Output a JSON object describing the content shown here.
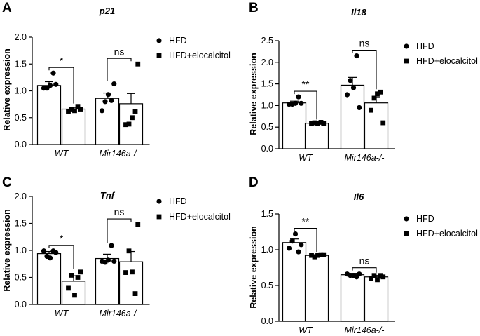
{
  "chart_data": [
    {
      "panel": "A",
      "type": "bar",
      "title": "p21",
      "ylabel": "Relative expression",
      "ylim": [
        0,
        2.0
      ],
      "yticks": [
        0.0,
        0.5,
        1.0,
        1.5,
        2.0
      ],
      "ytick_labels": [
        "0.0",
        "0.5",
        "1.0",
        "1.5",
        "2.0"
      ],
      "categories": [
        "WT",
        "Mir146a-/-"
      ],
      "legend": [
        "HFD",
        "HFD+elocalcitol"
      ],
      "series": [
        {
          "name": "HFD",
          "marker": "circle",
          "values": [
            1.1,
            0.86
          ],
          "errors": [
            0.07,
            0.1
          ],
          "points": [
            [
              1.05,
              1.05,
              1.1,
              1.33,
              1.12
            ],
            [
              0.63,
              0.8,
              0.93,
              0.82,
              1.13
            ]
          ]
        },
        {
          "name": "HFD+elocalcitol",
          "marker": "square",
          "values": [
            0.66,
            0.76
          ],
          "errors": [
            0.03,
            0.19
          ],
          "points": [
            [
              0.62,
              0.66,
              0.63,
              0.71,
              0.66
            ],
            [
              0.37,
              0.38,
              0.5,
              0.62,
              1.5
            ]
          ]
        }
      ],
      "significance": [
        "*",
        "ns"
      ]
    },
    {
      "panel": "B",
      "type": "bar",
      "title": "Il18",
      "ylabel": "Relative expression",
      "ylim": [
        0,
        2.5
      ],
      "yticks": [
        0.0,
        0.5,
        1.0,
        1.5,
        2.0,
        2.5
      ],
      "ytick_labels": [
        "0.0",
        "0.5",
        "1.0",
        "1.5",
        "2.0",
        "2.5"
      ],
      "categories": [
        "WT",
        "Mir146a-/-"
      ],
      "legend": [
        "HFD",
        "HFD+elocalcitol"
      ],
      "series": [
        {
          "name": "HFD",
          "marker": "circle",
          "values": [
            1.06,
            1.47
          ],
          "errors": [
            0.04,
            0.18
          ],
          "points": [
            [
              1.03,
              1.03,
              1.05,
              1.2,
              1.05
            ],
            [
              1.25,
              1.58,
              1.41,
              2.15,
              0.95
            ]
          ]
        },
        {
          "name": "HFD+elocalcitol",
          "marker": "square",
          "values": [
            0.59,
            1.06
          ],
          "errors": [
            0.01,
            0.14
          ],
          "points": [
            [
              0.58,
              0.6,
              0.58,
              0.61,
              0.58
            ],
            [
              0.89,
              1.17,
              1.27,
              1.31,
              0.6
            ]
          ]
        }
      ],
      "significance": [
        "**",
        "ns"
      ]
    },
    {
      "panel": "C",
      "type": "bar",
      "title": "Tnf",
      "ylabel": "Relative expression",
      "ylim": [
        0,
        2.0
      ],
      "yticks": [
        0.0,
        0.5,
        1.0,
        1.5,
        2.0
      ],
      "ytick_labels": [
        "0.0",
        "0.5",
        "1.0",
        "1.5",
        "2.0"
      ],
      "categories": [
        "WT",
        "Mir146a-/-"
      ],
      "legend": [
        "HFD",
        "HFD+elocalcitol"
      ],
      "series": [
        {
          "name": "HFD",
          "marker": "circle",
          "values": [
            0.94,
            0.85
          ],
          "errors": [
            0.04,
            0.08
          ],
          "points": [
            [
              0.99,
              0.89,
              0.86,
              0.99,
              0.96
            ],
            [
              0.8,
              0.78,
              0.82,
              1.09,
              0.8
            ]
          ]
        },
        {
          "name": "HFD+elocalcitol",
          "marker": "square",
          "values": [
            0.43,
            0.79
          ],
          "errors": [
            0.1,
            0.19
          ],
          "points": [
            [
              0.3,
              0.54,
              0.17,
              0.5,
              0.6
            ],
            [
              0.59,
              0.99,
              0.6,
              0.2,
              1.48
            ]
          ]
        }
      ],
      "significance": [
        "*",
        "ns"
      ]
    },
    {
      "panel": "D",
      "type": "bar",
      "title": "Il6",
      "ylabel": "Relative expression",
      "ylim": [
        0,
        1.5
      ],
      "yticks": [
        0.0,
        0.5,
        1.0,
        1.5
      ],
      "ytick_labels": [
        "0.0",
        "0.5",
        "1.0",
        "1.5"
      ],
      "categories": [
        "WT",
        "Mir146a-/-"
      ],
      "legend": [
        "HFD",
        "HFD+elocalcitol"
      ],
      "series": [
        {
          "name": "HFD",
          "marker": "circle",
          "values": [
            1.1,
            0.65
          ],
          "errors": [
            0.05,
            0.02
          ],
          "points": [
            [
              1.02,
              1.12,
              1.22,
              0.97,
              1.07
            ],
            [
              0.66,
              0.64,
              0.64,
              0.62,
              0.66
            ]
          ]
        },
        {
          "name": "HFD+elocalcitol",
          "marker": "square",
          "values": [
            0.92,
            0.62
          ],
          "errors": [
            0.01,
            0.02
          ],
          "points": [
            [
              0.92,
              0.9,
              0.92,
              0.93,
              0.93
            ],
            [
              0.6,
              0.64,
              0.58,
              0.64,
              0.62
            ]
          ]
        }
      ],
      "significance": [
        "**",
        "ns"
      ]
    }
  ]
}
